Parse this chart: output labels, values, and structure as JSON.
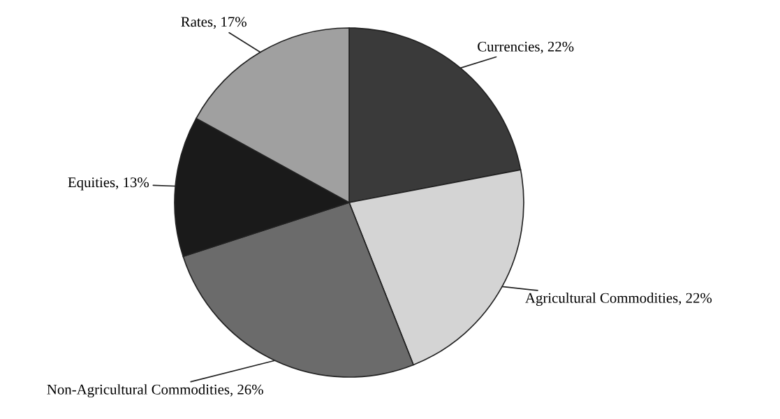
{
  "chart_data": {
    "type": "pie",
    "categories": [
      "Currencies",
      "Agricultural Commodities",
      "Non-Agricultural Commodities",
      "Equities",
      "Rates"
    ],
    "values": [
      22,
      22,
      26,
      13,
      17
    ],
    "value_labels": [
      "22%",
      "22%",
      "26%",
      "13%",
      "17%"
    ],
    "colors": [
      "#3a3a3a",
      "#d4d4d4",
      "#6b6b6b",
      "#1a1a1a",
      "#a0a0a0"
    ],
    "legend": false
  }
}
